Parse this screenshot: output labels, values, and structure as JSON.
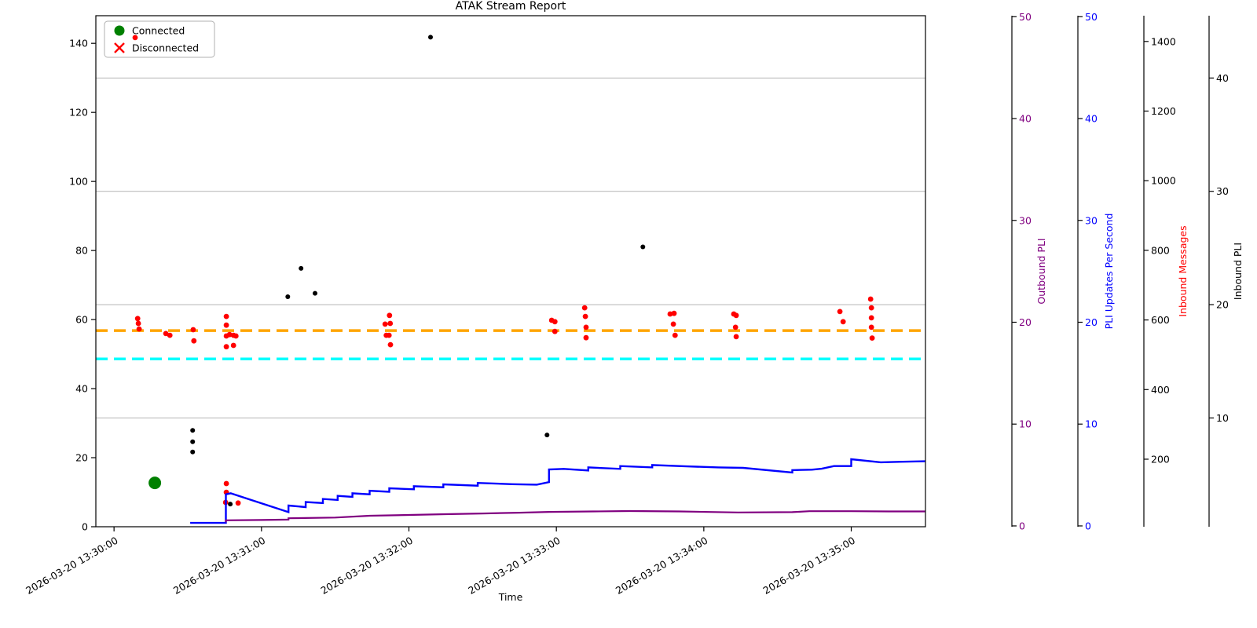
{
  "title": "ATAK Stream Report",
  "xlabel": "Time",
  "legend": {
    "items": [
      {
        "label": "Connected",
        "marker": "circle",
        "color": "#008000"
      },
      {
        "label": "Disconnected",
        "marker": "x",
        "color": "#ff0000"
      }
    ]
  },
  "chart_data": {
    "type": "scatter",
    "title": "ATAK Stream Report",
    "xlabel": "Time",
    "x_axis": {
      "tick_seconds": [
        0,
        60,
        120,
        180,
        240,
        300
      ],
      "tick_labels": [
        "2026-03-20 13:30:00",
        "2026-03-20 13:31:00",
        "2026-03-20 13:32:00",
        "2026-03-20 13:33:00",
        "2026-03-20 13:34:00",
        "2026-03-20 13:35:00"
      ],
      "range_seconds": [
        -7.4,
        330.2
      ]
    },
    "y_axes": {
      "left": {
        "ticks": [
          0,
          20,
          40,
          60,
          80,
          100,
          120,
          140
        ],
        "range": [
          0,
          148
        ],
        "color": "#000000",
        "grid": false
      },
      "outbound_pli": {
        "label": "Outbound PLI",
        "ticks": [
          0,
          10,
          20,
          30,
          40,
          50
        ],
        "range": [
          -0.08,
          50.1
        ],
        "color": "#800080",
        "label_color": "#800080",
        "grid": false
      },
      "pli_updates": {
        "label": "PLI Updates Per Second",
        "ticks": [
          0,
          10,
          20,
          30,
          40,
          50
        ],
        "range": [
          -0.08,
          50.1
        ],
        "color": "#0000ff",
        "label_color": "#0000ff",
        "grid": false
      },
      "inbound_messages": {
        "label": "Inbound Messages",
        "ticks": [
          200,
          400,
          600,
          800,
          1000,
          1200,
          1400
        ],
        "range": [
          6,
          1474
        ],
        "color": "#000000",
        "label_color": "#ff0000",
        "grid": false
      },
      "inbound_pli": {
        "label": "Inbound PLI",
        "ticks": [
          10,
          20,
          30,
          40
        ],
        "range": [
          0.4,
          45.5
        ],
        "color": "#000000",
        "label_color": "#000000",
        "grid": true
      }
    },
    "hlines": [
      {
        "axis": "left",
        "value": 56.8,
        "color": "#ffa500",
        "style": "dashed"
      },
      {
        "axis": "left",
        "value": 48.6,
        "color": "#00ffff",
        "style": "dashed"
      }
    ],
    "series": [
      {
        "name": "Connected",
        "axis": "left",
        "type": "scatter",
        "marker": "circle",
        "color": "#008000",
        "radius": 8,
        "points": [
          [
            16.6,
            12.7
          ]
        ]
      },
      {
        "name": "Inbound Messages",
        "axis": "inbound_messages",
        "type": "scatter",
        "marker": "circle",
        "color": "#ff0000",
        "radius": 3.4,
        "points": [
          [
            8.6,
            1411
          ],
          [
            9.6,
            604
          ],
          [
            9.9,
            590
          ],
          [
            10.2,
            574
          ],
          [
            21.1,
            561
          ],
          [
            22.7,
            556
          ],
          [
            32.2,
            572
          ],
          [
            32.5,
            540
          ],
          [
            45.7,
            610
          ],
          [
            45.7,
            585
          ],
          [
            47.0,
            558
          ],
          [
            48.6,
            556
          ],
          [
            49.6,
            554
          ],
          [
            45.7,
            554
          ],
          [
            45.7,
            523
          ],
          [
            48.6,
            527
          ],
          [
            45.7,
            130
          ],
          [
            45.7,
            105
          ],
          [
            45.4,
            76
          ],
          [
            50.5,
            74
          ],
          [
            112.1,
            613
          ],
          [
            110.3,
            588
          ],
          [
            112.4,
            590
          ],
          [
            110.8,
            556
          ],
          [
            111.9,
            556
          ],
          [
            112.5,
            529
          ],
          [
            178.1,
            599
          ],
          [
            179.4,
            595
          ],
          [
            179.4,
            567
          ],
          [
            191.5,
            635
          ],
          [
            191.8,
            610
          ],
          [
            192.1,
            579
          ],
          [
            192.1,
            549
          ],
          [
            226.3,
            617
          ],
          [
            227.9,
            619
          ],
          [
            227.6,
            588
          ],
          [
            228.3,
            556
          ],
          [
            252.2,
            617
          ],
          [
            253.2,
            613
          ],
          [
            252.9,
            579
          ],
          [
            253.2,
            552
          ],
          [
            295.4,
            624
          ],
          [
            296.7,
            595
          ],
          [
            307.9,
            660
          ],
          [
            308.2,
            635
          ],
          [
            308.2,
            606
          ],
          [
            308.2,
            579
          ],
          [
            308.5,
            548
          ]
        ]
      },
      {
        "name": "Inbound PLI",
        "axis": "inbound_pli",
        "type": "scatter",
        "marker": "circle",
        "color": "#000000",
        "radius": 3,
        "points": [
          [
            128.8,
            43.6
          ],
          [
            76.1,
            23.2
          ],
          [
            70.7,
            20.7
          ],
          [
            81.8,
            21.0
          ],
          [
            215.2,
            25.1
          ],
          [
            32.0,
            8.9
          ],
          [
            32.0,
            7.9
          ],
          [
            32.0,
            7.0
          ],
          [
            176.2,
            8.5
          ],
          [
            47.3,
            2.4
          ]
        ]
      },
      {
        "name": "PLI Updates Per Second",
        "axis": "pli_updates",
        "type": "line",
        "color": "#0000ff",
        "width": 2.4,
        "points": [
          [
            31,
            0.3
          ],
          [
            45.5,
            0.3
          ],
          [
            45.5,
            3.1
          ],
          [
            47.5,
            3.2
          ],
          [
            71,
            1.35
          ],
          [
            71,
            2.0
          ],
          [
            78,
            1.85
          ],
          [
            78,
            2.35
          ],
          [
            85,
            2.25
          ],
          [
            85,
            2.65
          ],
          [
            91,
            2.55
          ],
          [
            91,
            2.95
          ],
          [
            97,
            2.85
          ],
          [
            97,
            3.2
          ],
          [
            104,
            3.1
          ],
          [
            104,
            3.45
          ],
          [
            112,
            3.35
          ],
          [
            112,
            3.7
          ],
          [
            122,
            3.6
          ],
          [
            122,
            3.9
          ],
          [
            134,
            3.8
          ],
          [
            134,
            4.08
          ],
          [
            148,
            3.95
          ],
          [
            148,
            4.22
          ],
          [
            162,
            4.1
          ],
          [
            172,
            4.05
          ],
          [
            177,
            4.3
          ],
          [
            177,
            5.55
          ],
          [
            183,
            5.6
          ],
          [
            193,
            5.45
          ],
          [
            193,
            5.75
          ],
          [
            206,
            5.6
          ],
          [
            206,
            5.88
          ],
          [
            219,
            5.75
          ],
          [
            219,
            5.98
          ],
          [
            233,
            5.85
          ],
          [
            246,
            5.75
          ],
          [
            256,
            5.7
          ],
          [
            276,
            5.25
          ],
          [
            276,
            5.48
          ],
          [
            284,
            5.52
          ],
          [
            288,
            5.62
          ],
          [
            293,
            5.88
          ],
          [
            300,
            5.88
          ],
          [
            300,
            6.55
          ],
          [
            312,
            6.25
          ],
          [
            321,
            6.3
          ],
          [
            330,
            6.35
          ]
        ]
      },
      {
        "name": "Outbound PLI",
        "axis": "outbound_pli",
        "type": "line",
        "color": "#800080",
        "width": 2.2,
        "points": [
          [
            45.5,
            0.35
          ],
          [
            45.5,
            0.55
          ],
          [
            60,
            0.58
          ],
          [
            71,
            0.62
          ],
          [
            71,
            0.75
          ],
          [
            90,
            0.82
          ],
          [
            104,
            1.0
          ],
          [
            120,
            1.08
          ],
          [
            135,
            1.15
          ],
          [
            150,
            1.22
          ],
          [
            165,
            1.3
          ],
          [
            177,
            1.38
          ],
          [
            195,
            1.42
          ],
          [
            210,
            1.46
          ],
          [
            230,
            1.42
          ],
          [
            254,
            1.32
          ],
          [
            276,
            1.35
          ],
          [
            283,
            1.45
          ],
          [
            300,
            1.45
          ],
          [
            315,
            1.42
          ],
          [
            330,
            1.42
          ]
        ]
      }
    ]
  }
}
